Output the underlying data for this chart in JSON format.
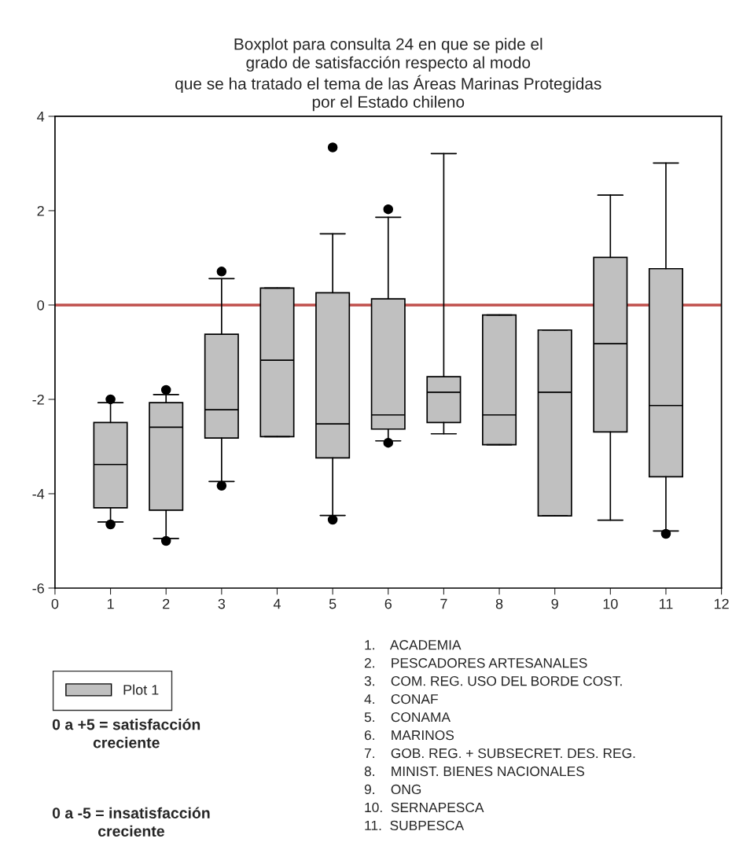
{
  "chart_data": {
    "type": "box",
    "title": "Boxplot para consulta 24 en que se pide el\ngrado de satisfacción respecto al modo\nque se ha tratado el tema de las Áreas Marinas Protegidas\npor el Estado chileno",
    "x": [
      1,
      2,
      3,
      4,
      5,
      6,
      7,
      8,
      9,
      10,
      11
    ],
    "xlim": [
      0,
      12
    ],
    "xticks": [
      0,
      1,
      2,
      3,
      4,
      5,
      6,
      7,
      8,
      9,
      10,
      11,
      12
    ],
    "ylim": [
      -6,
      4
    ],
    "yticks": [
      -6,
      -4,
      -2,
      0,
      2,
      4
    ],
    "series": [
      {
        "name": "Plot 1",
        "color": "#c0c0c0",
        "boxes": [
          {
            "low": -4.6,
            "q1": -4.3,
            "median": -3.38,
            "q3": -2.49,
            "high": -2.07,
            "outliers": [
              -2.0,
              -4.65
            ]
          },
          {
            "low": -4.95,
            "q1": -4.35,
            "median": -2.59,
            "q3": -2.07,
            "high": -1.9,
            "outliers": [
              -1.8,
              -5.0
            ]
          },
          {
            "low": -3.74,
            "q1": -2.82,
            "median": -2.22,
            "q3": -0.62,
            "high": 0.56,
            "outliers": [
              0.71,
              -3.83
            ]
          },
          {
            "low": -2.79,
            "q1": -2.79,
            "median": -1.17,
            "q3": 0.36,
            "high": 0.36
          },
          {
            "low": -4.46,
            "q1": -3.24,
            "median": -2.52,
            "q3": 0.26,
            "high": 1.51,
            "outliers": [
              3.34,
              -4.55
            ]
          },
          {
            "low": -2.88,
            "q1": -2.63,
            "median": -2.33,
            "q3": 0.13,
            "high": 1.86,
            "outliers": [
              2.03,
              -2.92
            ]
          },
          {
            "low": -2.73,
            "q1": -2.49,
            "median": -1.85,
            "q3": -1.52,
            "high": 3.21
          },
          {
            "low": -2.96,
            "q1": -2.96,
            "median": -2.33,
            "q3": -0.21,
            "high": -0.21
          },
          {
            "low": -4.47,
            "q1": -4.47,
            "median": -1.85,
            "q3": -0.53,
            "high": -0.53
          },
          {
            "low": -4.56,
            "q1": -2.69,
            "median": -0.82,
            "q3": 1.01,
            "high": 2.33
          },
          {
            "low": -4.79,
            "q1": -3.64,
            "median": -2.13,
            "q3": 0.77,
            "high": 3.01,
            "outliers": [
              -4.85
            ]
          }
        ]
      }
    ],
    "ref_lines": [
      {
        "axis": "y",
        "value": 0,
        "color": "#c0504d"
      }
    ],
    "legend": "bottom left",
    "grid": false,
    "annotations": [
      "0 a +5 = satisfacción\ncreciente",
      "0 a -5 = insatisfacción\ncreciente",
      "1.    ACADEMIA",
      "2.    PESCADORES ARTESANALES",
      "3.    COM. REG. USO DEL BORDE COST.",
      "4.    CONAF",
      "5.    CONAMA",
      "6.    MARINOS",
      "7.    GOB. REG. + SUBSECRET. DES. REG.",
      "8.    MINIST. BIENES NACIONALES",
      "9.    ONG",
      "10.  SERNAPESCA",
      "11.  SUBPESCA"
    ]
  }
}
